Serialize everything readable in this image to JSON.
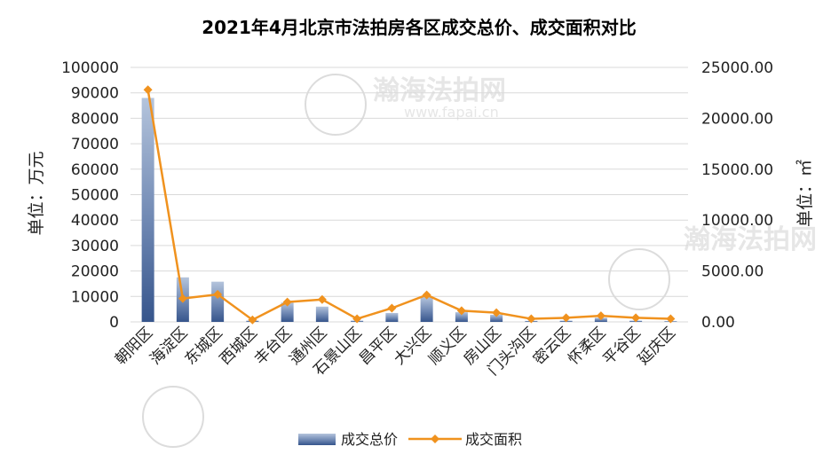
{
  "chart_data": {
    "type": "bar",
    "title": "2021年4月北京市法拍房各区成交总价、成交面积对比",
    "categories": [
      "朝阳区",
      "海淀区",
      "东城区",
      "西城区",
      "丰台区",
      "通州区",
      "石景山区",
      "昌平区",
      "大兴区",
      "顺义区",
      "房山区",
      "门头沟区",
      "密云区",
      "怀柔区",
      "平谷区",
      "延庆区"
    ],
    "series": [
      {
        "name": "成交总价",
        "type": "bar",
        "axis": "left",
        "values": [
          88000,
          17500,
          15800,
          500,
          7600,
          6000,
          500,
          3500,
          9800,
          3800,
          2800,
          400,
          500,
          1600,
          500,
          300
        ]
      },
      {
        "name": "成交面积",
        "type": "line",
        "axis": "right",
        "values": [
          22800,
          2300,
          2700,
          200,
          1950,
          2200,
          300,
          1350,
          2650,
          1100,
          900,
          300,
          400,
          600,
          400,
          300
        ]
      }
    ],
    "ylabel": "单位：万元",
    "y2label": "单位：㎡",
    "ylim": [
      0,
      100000
    ],
    "y2lim": [
      0,
      25000
    ],
    "yticks": [
      "0",
      "10000",
      "20000",
      "30000",
      "40000",
      "50000",
      "60000",
      "70000",
      "80000",
      "90000",
      "100000"
    ],
    "y2ticks": [
      "0.00",
      "5000.00",
      "10000.00",
      "15000.00",
      "20000.00",
      "25000.00"
    ],
    "grid": true,
    "legend": "bottom",
    "colors": {
      "bar_top": "#b4c4dc",
      "bar_bottom": "#36558c",
      "line": "#f0921e"
    }
  },
  "watermark": {
    "text": "瀚海法拍网",
    "url": "www.fapai.cn"
  }
}
